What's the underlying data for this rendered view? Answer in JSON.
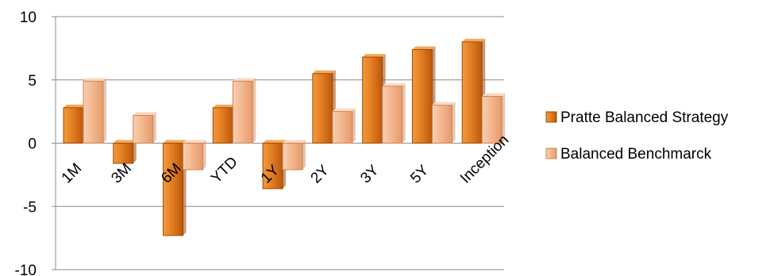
{
  "chart_data": {
    "type": "bar",
    "categories": [
      "1M",
      "3M",
      "6M",
      "YTD",
      "1Y",
      "2Y",
      "3Y",
      "5Y",
      "Inception"
    ],
    "series": [
      {
        "name": "Pratte Balanced Strategy",
        "values": [
          2.8,
          -1.6,
          -7.3,
          2.8,
          -3.6,
          5.5,
          6.8,
          7.4,
          8.0
        ],
        "color": "#e07a1f"
      },
      {
        "name": "Balanced Benchmarck",
        "values": [
          4.9,
          2.2,
          -2.1,
          4.9,
          -2.1,
          2.5,
          4.5,
          3.0,
          3.7
        ],
        "color": "#f3b48b"
      }
    ],
    "title": "",
    "xlabel": "",
    "ylabel": "",
    "ylim": [
      -10,
      10
    ],
    "yticks": [
      "10",
      "5",
      "0",
      "-5",
      "-10"
    ],
    "grid": true,
    "legend_position": "right"
  }
}
